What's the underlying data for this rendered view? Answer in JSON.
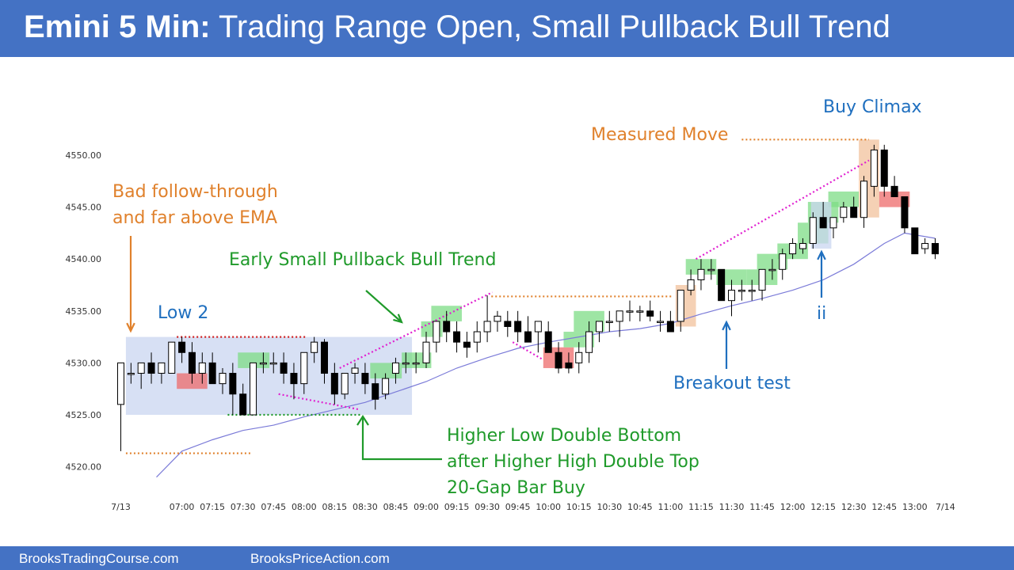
{
  "header": {
    "title_bold": "Emini 5 Min:",
    "title_rest": "Trading Range Open, Small Pullback Bull Trend"
  },
  "footer": {
    "link_left": "BrooksTradingCourse.com",
    "link_right": "BrooksPriceAction.com"
  },
  "colors": {
    "header_bg": "#4472c4",
    "orange": "#e0812c",
    "green": "#1f9a2a",
    "blue": "#1f6fbf",
    "ema": "#7b7bd8",
    "magenta": "#e020d0",
    "red_dotted": "#d02020",
    "bull_bar_highlight": "#7ddc86",
    "bear_bar_highlight": "#ee6b6b",
    "climax_highlight": "#f3c9a8",
    "range_box": "#c9d6f0"
  },
  "chart_data": {
    "type": "candlestick",
    "title": "",
    "xlabel": "",
    "ylabel": "",
    "y_ticks": [
      "4520.00",
      "4525.00",
      "4530.00",
      "4535.00",
      "4540.00",
      "4545.00",
      "4550.00"
    ],
    "ylim": [
      4518.5,
      4553
    ],
    "x_tick_labels": [
      "7/13",
      "07:00",
      "07:15",
      "07:30",
      "07:45",
      "08:00",
      "08:15",
      "08:30",
      "08:45",
      "09:00",
      "09:15",
      "09:30",
      "09:45",
      "10:00",
      "10:15",
      "10:30",
      "10:45",
      "11:00",
      "11:15",
      "11:30",
      "11:45",
      "12:00",
      "12:15",
      "12:30",
      "12:45",
      "13:00",
      "7/14"
    ],
    "x_tick_bars": [
      0,
      6,
      9,
      12,
      15,
      18,
      21,
      24,
      27,
      30,
      33,
      36,
      39,
      42,
      45,
      48,
      51,
      54,
      57,
      60,
      63,
      66,
      69,
      72,
      75,
      78,
      81
    ],
    "grid": false,
    "legend": "none",
    "bars": [
      [
        4526,
        4530,
        4521.5,
        4530
      ],
      [
        4529,
        4530,
        4528,
        4529
      ],
      [
        4529,
        4530,
        4527.5,
        4530
      ],
      [
        4530,
        4531,
        4528,
        4529
      ],
      [
        4529,
        4530,
        4528,
        4530
      ],
      [
        4529,
        4532,
        4529,
        4532
      ],
      [
        4532,
        4532.5,
        4530,
        4531
      ],
      [
        4531,
        4532,
        4528,
        4529
      ],
      [
        4529,
        4531,
        4528,
        4530
      ],
      [
        4530,
        4531,
        4528,
        4528
      ],
      [
        4528,
        4529.5,
        4527,
        4529
      ],
      [
        4529,
        4530,
        4525,
        4527
      ],
      [
        4527,
        4528,
        4525,
        4525
      ],
      [
        4525,
        4530,
        4525,
        4530
      ],
      [
        4530,
        4531,
        4529,
        4530
      ],
      [
        4530,
        4531,
        4529,
        4530
      ],
      [
        4530,
        4531,
        4528,
        4529
      ],
      [
        4529,
        4530,
        4526.5,
        4528
      ],
      [
        4528,
        4531,
        4527,
        4531
      ],
      [
        4531,
        4532.5,
        4530,
        4532
      ],
      [
        4532,
        4532.3,
        4528,
        4529
      ],
      [
        4529,
        4530,
        4526,
        4527
      ],
      [
        4527,
        4529,
        4526.5,
        4529
      ],
      [
        4529,
        4530,
        4528,
        4529.5
      ],
      [
        4529,
        4530,
        4527,
        4528
      ],
      [
        4528,
        4529,
        4525.5,
        4526.5
      ],
      [
        4527,
        4529,
        4526.5,
        4528.5
      ],
      [
        4529,
        4530.5,
        4528,
        4530
      ],
      [
        4530,
        4531,
        4529,
        4530
      ],
      [
        4530,
        4531,
        4529,
        4530
      ],
      [
        4530,
        4533,
        4529.5,
        4532
      ],
      [
        4532,
        4534,
        4531,
        4534
      ],
      [
        4534,
        4535,
        4532,
        4533
      ],
      [
        4533,
        4534,
        4531,
        4532
      ],
      [
        4532,
        4533,
        4530.5,
        4531.5
      ],
      [
        4532,
        4534,
        4531,
        4533
      ],
      [
        4533,
        4536.5,
        4532,
        4534
      ],
      [
        4534,
        4535,
        4533,
        4534.5
      ],
      [
        4534,
        4535,
        4532.5,
        4533.5
      ],
      [
        4534,
        4535,
        4532,
        4533
      ],
      [
        4533,
        4534.5,
        4532,
        4532
      ],
      [
        4533,
        4534,
        4531,
        4534
      ],
      [
        4533,
        4534,
        4531,
        4531
      ],
      [
        4531,
        4532,
        4529,
        4529.5
      ],
      [
        4530,
        4531,
        4529,
        4529.5
      ],
      [
        4530,
        4532,
        4529,
        4531
      ],
      [
        4531,
        4534,
        4530,
        4533
      ],
      [
        4533,
        4534,
        4532,
        4534
      ],
      [
        4534,
        4535,
        4533,
        4534
      ],
      [
        4534,
        4535,
        4532.5,
        4535
      ],
      [
        4535,
        4536,
        4534,
        4535
      ],
      [
        4535,
        4535.5,
        4534,
        4535
      ],
      [
        4535,
        4536,
        4534,
        4534.5
      ],
      [
        4534,
        4535,
        4533,
        4534
      ],
      [
        4534,
        4535,
        4533,
        4533
      ],
      [
        4534,
        4537,
        4533,
        4537
      ],
      [
        4537,
        4539,
        4536.5,
        4538
      ],
      [
        4538,
        4540,
        4537,
        4539
      ],
      [
        4539,
        4540,
        4538,
        4539
      ],
      [
        4539,
        4539,
        4536,
        4536
      ],
      [
        4536,
        4538,
        4534.5,
        4537
      ],
      [
        4537,
        4538,
        4536,
        4537
      ],
      [
        4537,
        4538,
        4536,
        4537
      ],
      [
        4537,
        4539,
        4536,
        4539
      ],
      [
        4539,
        4540,
        4538,
        4539
      ],
      [
        4539,
        4541,
        4538,
        4540.5
      ],
      [
        4540.5,
        4542,
        4540,
        4541.5
      ],
      [
        4541,
        4542,
        4540.5,
        4541.5
      ],
      [
        4541.5,
        4544.5,
        4541,
        4544
      ],
      [
        4544,
        4545.5,
        4543.5,
        4543
      ],
      [
        4543,
        4544,
        4542,
        4544
      ],
      [
        4544,
        4545.5,
        4543.5,
        4545
      ],
      [
        4545,
        4546,
        4544,
        4544
      ],
      [
        4544,
        4548,
        4543,
        4547.5
      ],
      [
        4547,
        4551,
        4546,
        4550.5
      ],
      [
        4550.5,
        4551,
        4546,
        4547
      ],
      [
        4547,
        4548,
        4546,
        4546
      ],
      [
        4546,
        4546,
        4542.5,
        4543
      ],
      [
        4543,
        4543,
        4540.5,
        4540.5
      ],
      [
        4541,
        4542,
        4540.5,
        4541.5
      ],
      [
        4541.5,
        4542,
        4540,
        4540.5
      ]
    ],
    "ema": [
      [
        3.5,
        4519.0
      ],
      [
        6,
        4521.5
      ],
      [
        9,
        4522.6
      ],
      [
        12,
        4523.5
      ],
      [
        15,
        4524.0
      ],
      [
        18,
        4524.8
      ],
      [
        21,
        4525.5
      ],
      [
        24,
        4526.2
      ],
      [
        27,
        4527.2
      ],
      [
        30,
        4528.2
      ],
      [
        33,
        4529.5
      ],
      [
        36,
        4530.5
      ],
      [
        39,
        4531.4
      ],
      [
        42,
        4532.0
      ],
      [
        45,
        4532.5
      ],
      [
        48,
        4533.0
      ],
      [
        51,
        4533.3
      ],
      [
        54,
        4533.8
      ],
      [
        57,
        4534.7
      ],
      [
        60,
        4535.5
      ],
      [
        63,
        4536.2
      ],
      [
        66,
        4537.0
      ],
      [
        69,
        4538.0
      ],
      [
        72,
        4539.5
      ],
      [
        75,
        4541.5
      ],
      [
        77,
        4542.5
      ],
      [
        80,
        4542.0
      ]
    ],
    "annotations": [
      {
        "text": "Bad follow-through",
        "color": "orange"
      },
      {
        "text": "and far above EMA",
        "color": "orange"
      },
      {
        "text": "Early Small Pullback Bull Trend",
        "color": "green"
      },
      {
        "text": "Low 2",
        "color": "blue"
      },
      {
        "text": "Higher Low Double Bottom",
        "color": "green"
      },
      {
        "text": "after Higher High Double Top",
        "color": "green"
      },
      {
        "text": "20-Gap Bar Buy",
        "color": "green"
      },
      {
        "text": "Measured Move",
        "color": "orange"
      },
      {
        "text": "Buy Climax",
        "color": "blue"
      },
      {
        "text": "Breakout test",
        "color": "blue"
      },
      {
        "text": "ii",
        "color": "blue"
      }
    ]
  }
}
